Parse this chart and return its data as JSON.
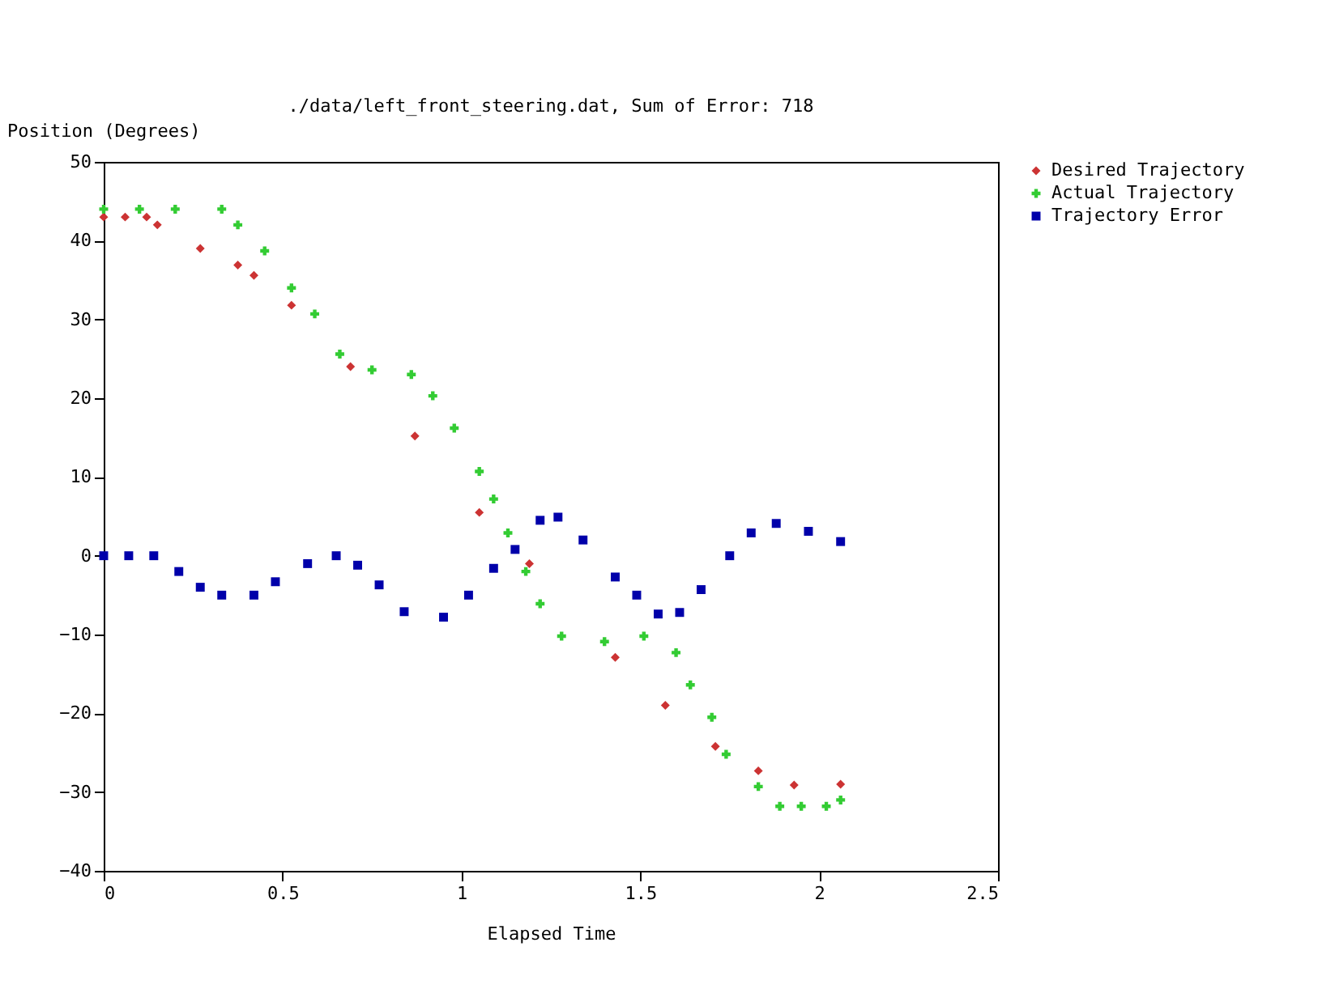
{
  "chart_data": {
    "type": "scatter",
    "title": "./data/left_front_steering.dat, Sum of Error:  718",
    "xlabel": "Elapsed Time",
    "ylabel": "Position (Degrees)",
    "xlim": [
      0,
      2.5
    ],
    "xticks": [
      0,
      0.5,
      1,
      1.5,
      2,
      2.5
    ],
    "ylim": [
      -40,
      50
    ],
    "yticks": [
      -40,
      -30,
      -20,
      -10,
      0,
      10,
      20,
      30,
      40,
      50
    ],
    "grid": false,
    "legend": "top right",
    "series": [
      {
        "name": "Desired Trajectory",
        "color": "#cc3333",
        "marker": "diamond",
        "x": [
          0,
          0.06,
          0.12,
          0.15,
          0.27,
          0.375,
          0.42,
          0.525,
          0.69,
          0.87,
          1.05,
          1.19,
          1.43,
          1.57,
          1.71,
          1.83,
          1.93,
          2.06
        ],
        "values": [
          43,
          43,
          43,
          42,
          39,
          36.9,
          35.6,
          31.8,
          24,
          15.2,
          5.5,
          -1,
          -12.9,
          -19,
          -24.2,
          -27.3,
          -29.1,
          -29
        ]
      },
      {
        "name": "Actual Trajectory",
        "color": "#33cc33",
        "marker": "cross",
        "x": [
          0,
          0.1,
          0.2,
          0.33,
          0.375,
          0.45,
          0.525,
          0.59,
          0.66,
          0.75,
          0.86,
          0.92,
          0.98,
          1.05,
          1.09,
          1.13,
          1.18,
          1.22,
          1.28,
          1.4,
          1.51,
          1.6,
          1.64,
          1.7,
          1.74,
          1.83,
          1.89,
          1.95,
          2.02,
          2.06
        ],
        "values": [
          44,
          44,
          44,
          44,
          42,
          38.7,
          34,
          30.7,
          25.6,
          23.6,
          23,
          20.3,
          16.2,
          10.7,
          7.2,
          2.9,
          -2,
          -6.1,
          -10.2,
          -10.9,
          -10.2,
          -12.3,
          -16.4,
          -20.5,
          -25.2,
          -29.3,
          -31.8,
          -31.8,
          -31.8,
          -31
        ]
      },
      {
        "name": "Trajectory Error",
        "color": "#0000aa",
        "marker": "square",
        "x": [
          0,
          0.07,
          0.14,
          0.21,
          0.27,
          0.33,
          0.42,
          0.48,
          0.57,
          0.65,
          0.71,
          0.77,
          0.84,
          0.95,
          1.02,
          1.09,
          1.15,
          1.22,
          1.27,
          1.34,
          1.43,
          1.49,
          1.55,
          1.61,
          1.67,
          1.75,
          1.81,
          1.88,
          1.97,
          2.06
        ],
        "values": [
          0,
          0,
          0,
          -2,
          -4,
          -5,
          -5,
          -3.3,
          -1,
          0,
          -1.2,
          -3.7,
          -7.1,
          -7.8,
          -5,
          -1.6,
          0.8,
          4.5,
          4.9,
          2,
          -2.7,
          -5,
          -7.4,
          -7.2,
          -4.3,
          0,
          2.9,
          4.1,
          3.1,
          1.8
        ]
      }
    ]
  }
}
